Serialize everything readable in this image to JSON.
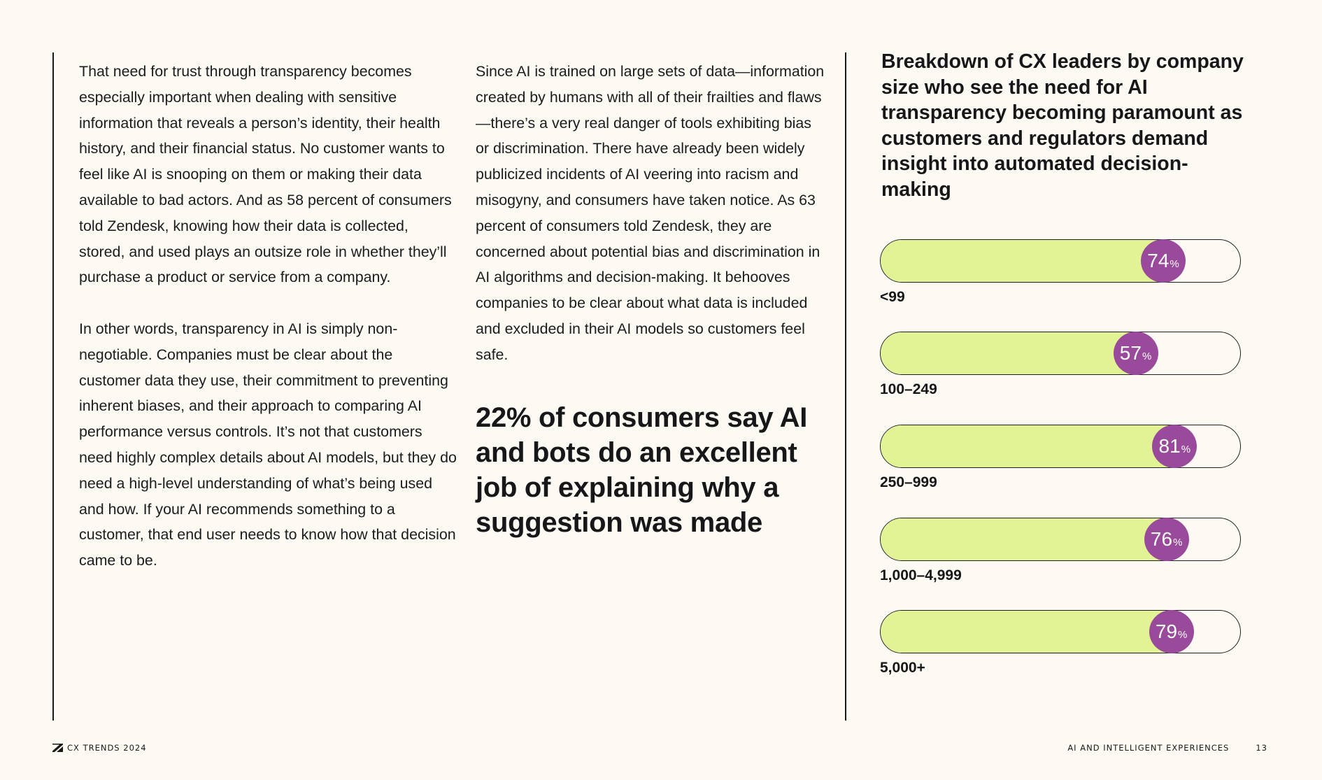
{
  "column1": {
    "paragraphs": [
      "That need for trust through transparency becomes especially important when dealing with sensitive information that reveals a person’s identity, their health history, and their financial status. No customer wants to feel like AI is snooping on them or making their data available to bad actors. And as 58 percent of consumers told Zendesk, knowing how their data is collected, stored, and used plays an outsize role in whether they’ll purchase a product or service from a company.",
      "In other words, transparency in AI is simply non-negotiable. Companies must be clear about the customer data they use, their commitment to preventing inherent biases, and their approach to comparing AI performance versus controls. It’s not that customers need highly complex details about AI models, but they do need a high-level understanding of what’s being used and how. If your AI recommends something to a customer, that end user needs to know how that decision came to be."
    ]
  },
  "column2": {
    "paragraph": "Since AI is trained on large sets of data—information created by humans with all of their frailties and flaws—there’s a very real danger of tools exhibiting bias or discrimination. There have already been widely publicized incidents of AI veering into racism and misogyny, and consumers have taken notice. As 63 percent of consumers told Zendesk, they are concerned about potential bias and discrimination in AI algorithms and decision-making. It behooves companies to be clear about what data is included and excluded in their AI models so customers feel safe.",
    "pullquote": "22% of consumers say AI and bots do an excellent job of explaining why a suggestion was made"
  },
  "chart_data": {
    "type": "bar",
    "title": "Breakdown of CX leaders by company size who see the need for AI transparency becoming paramount as customers and regulators demand insight into automated decision-making",
    "categories": [
      "<99",
      "100–249",
      "250–999",
      "1,000–4,999",
      "5,000+"
    ],
    "values": [
      74,
      57,
      81,
      76,
      79
    ],
    "unit": "%",
    "xlim": [
      0,
      100
    ],
    "fill_color": "#e2f396",
    "bubble_color": "#9a4a9b"
  },
  "footer": {
    "left": "CX TRENDS 2024",
    "section": "AI AND INTELLIGENT EXPERIENCES",
    "page": "13"
  }
}
